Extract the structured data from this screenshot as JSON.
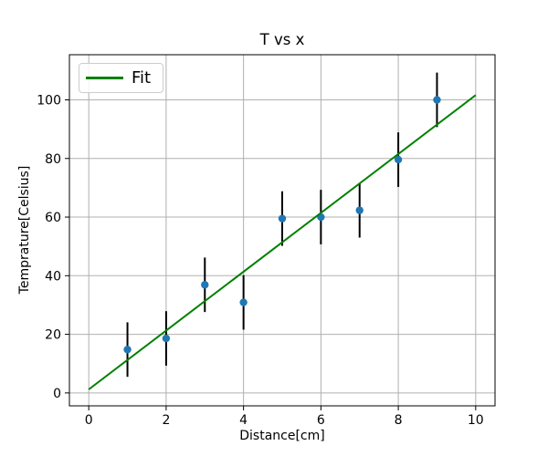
{
  "chart_data": {
    "type": "scatter",
    "title": "T vs x",
    "xlabel": "Distance[cm]",
    "ylabel": "Temprature[Celsius]",
    "x": [
      1,
      2,
      3,
      4,
      5,
      6,
      7,
      8,
      9
    ],
    "y": [
      14.8,
      18.6,
      36.9,
      30.9,
      59.5,
      60.0,
      62.3,
      79.6,
      100.0
    ],
    "yerr": 9.3,
    "marker_color": "#1f77b4",
    "errorbar_color": "#000000",
    "fit_line": {
      "label": "Fit",
      "color": "#008000",
      "x": [
        0,
        10
      ],
      "y": [
        1.2,
        101.6
      ]
    },
    "xlim": [
      -0.5,
      10.5
    ],
    "ylim": [
      -4.4,
      115.4
    ],
    "xticks": [
      0,
      2,
      4,
      6,
      8,
      10
    ],
    "yticks": [
      0,
      20,
      40,
      60,
      80,
      100
    ],
    "grid": true,
    "grid_color": "#b0b0b0",
    "axes_color": "#000000",
    "legend_position": "upper left"
  }
}
